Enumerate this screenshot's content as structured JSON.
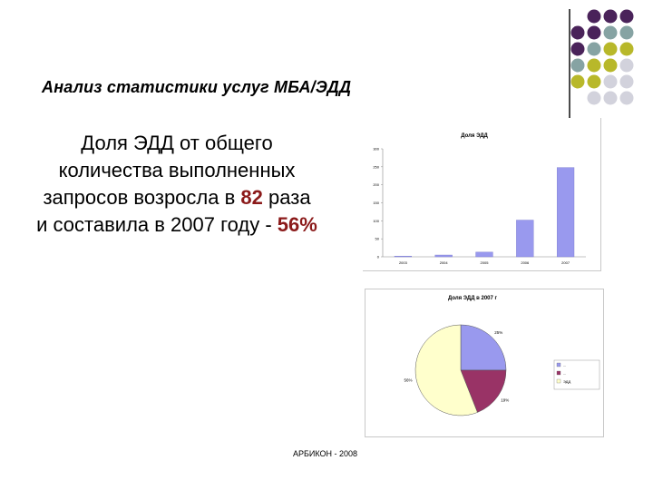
{
  "slide": {
    "title": "Анализ статистики услуг МБА/ЭДД",
    "text_parts": {
      "p1": "Доля ЭДД от общего количества выполненных запросов возросла в ",
      "times": "82",
      "p2": " раза и составила в 2007 году - ",
      "pct": "56%"
    },
    "footer": "АРБИКОН - 2008"
  },
  "decor_colors": [
    "#4a235a",
    "#86a3a3",
    "#b8b82a",
    "#d2d2dc"
  ],
  "chart_data": [
    {
      "type": "bar",
      "title": "Доля ЭДД",
      "categories": [
        "2003",
        "2004",
        "2005",
        "2006",
        "2007"
      ],
      "values": [
        2,
        5,
        13,
        102,
        248
      ],
      "ylim": [
        0,
        300
      ],
      "yticks": [
        "0",
        "50",
        "100",
        "150",
        "200",
        "250",
        "300"
      ],
      "grid": false,
      "color": "#9999ee"
    },
    {
      "type": "pie",
      "title": "Доля ЭДД в 2007 г",
      "legend_placement": "right",
      "slices": [
        {
          "label": "...",
          "value": 25,
          "text": "25%",
          "color": "#9999ee"
        },
        {
          "label": "...",
          "value": 19,
          "text": "19%",
          "color": "#993366"
        },
        {
          "label": "ЭДД",
          "value": 56,
          "text": "56%",
          "color": "#ffffcc"
        }
      ]
    }
  ]
}
